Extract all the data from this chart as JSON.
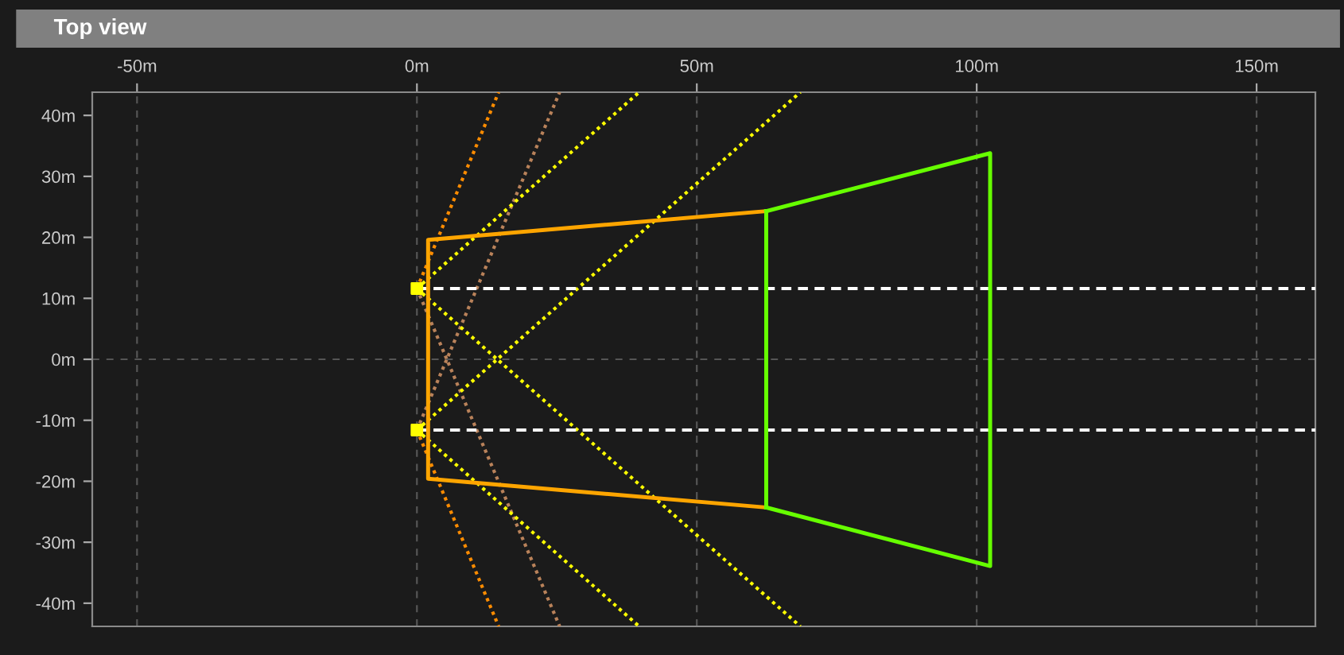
{
  "chart_data": {
    "type": "line",
    "title": "Top view",
    "xlim": [
      -58,
      160.5
    ],
    "ylim": [
      -43.8,
      43.8
    ],
    "xticks": [
      {
        "value": -50,
        "label": "-50m"
      },
      {
        "value": 0,
        "label": "0m"
      },
      {
        "value": 50,
        "label": "50m"
      },
      {
        "value": 100,
        "label": "100m"
      },
      {
        "value": 150,
        "label": "150m"
      }
    ],
    "yticks": [
      {
        "value": -40,
        "label": "-40m"
      },
      {
        "value": -30,
        "label": "-30m"
      },
      {
        "value": -20,
        "label": "-20m"
      },
      {
        "value": -10,
        "label": "-10m"
      },
      {
        "value": 0,
        "label": "0m"
      },
      {
        "value": 10,
        "label": "10m"
      },
      {
        "value": 20,
        "label": "20m"
      },
      {
        "value": 30,
        "label": "30m"
      },
      {
        "value": 40,
        "label": "40m"
      }
    ],
    "grid": "x",
    "legend": false,
    "ref_lines": [
      {
        "axis": "y",
        "value": 0,
        "color": "#555555",
        "line_style": "dashed"
      }
    ],
    "series": [
      {
        "color": "#ff8c00",
        "line_style": "dotted",
        "x": [
          0,
          14.6
        ],
        "values": [
          11.6,
          43.8
        ]
      },
      {
        "color": "#ff8c00",
        "line_style": "dotted",
        "x": [
          0,
          14.6
        ],
        "values": [
          -11.6,
          -43.8
        ]
      },
      {
        "color": "#b9825a",
        "line_style": "dotted",
        "x": [
          0,
          25.5
        ],
        "values": [
          11.6,
          -43.8
        ]
      },
      {
        "color": "#b9825a",
        "line_style": "dotted",
        "x": [
          0,
          25.5
        ],
        "values": [
          -11.6,
          43.8
        ]
      },
      {
        "color": "#ffff00",
        "line_style": "dotted",
        "x": [
          0,
          39.7
        ],
        "values": [
          11.6,
          43.8
        ]
      },
      {
        "color": "#ffff00",
        "line_style": "dotted",
        "x": [
          0,
          68.5
        ],
        "values": [
          11.6,
          -43.8
        ]
      },
      {
        "color": "#ffff00",
        "line_style": "dotted",
        "x": [
          0,
          68.5
        ],
        "values": [
          -11.6,
          43.8
        ]
      },
      {
        "color": "#ffff00",
        "line_style": "dotted",
        "x": [
          0,
          39.7
        ],
        "values": [
          -11.6,
          -43.8
        ]
      },
      {
        "color": "#ffffff",
        "line_style": "dashed",
        "x": [
          0,
          160.5
        ],
        "values": [
          11.6,
          11.6
        ]
      },
      {
        "color": "#ffffff",
        "line_style": "dashed",
        "x": [
          0,
          160.5
        ],
        "values": [
          -11.6,
          -11.6
        ]
      },
      {
        "color": "#ffa500",
        "line_style": "solid",
        "x": [
          62.4,
          2,
          2,
          62.4
        ],
        "values": [
          24.3,
          19.6,
          -19.6,
          -24.3
        ]
      },
      {
        "color": "#66ff00",
        "line_style": "solid",
        "x": [
          62.4,
          102.4,
          102.4,
          62.4
        ],
        "values": [
          24.3,
          33.8,
          -33.9,
          -24.3
        ]
      },
      {
        "color": "#66ff00",
        "line_style": "solid",
        "x": [
          62.4,
          62.4
        ],
        "values": [
          24.3,
          -24.3
        ]
      },
      {
        "type": "scatter",
        "color": "#ffff00",
        "marker": "square",
        "x": [
          0,
          0
        ],
        "values": [
          11.6,
          -11.6
        ]
      }
    ]
  }
}
